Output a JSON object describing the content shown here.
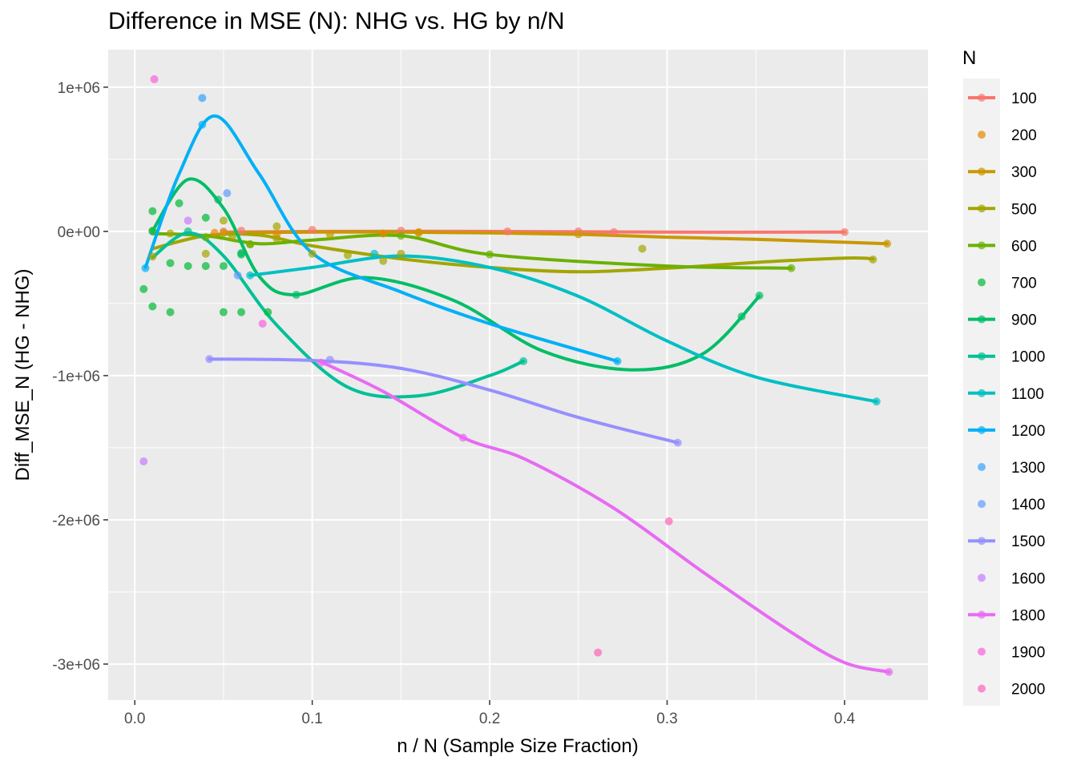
{
  "chart_data": {
    "type": "scatter",
    "title": "Difference in MSE (N): NHG vs. HG by n/N",
    "xlabel": "n / N (Sample Size Fraction)",
    "ylabel": "Diff_MSE_N (HG - NHG)",
    "xlim": [
      -0.015,
      0.447
    ],
    "ylim": [
      -3250000,
      1260000
    ],
    "x_ticks": [
      0.0,
      0.1,
      0.2,
      0.3,
      0.4
    ],
    "x_tick_labels": [
      "0.0",
      "0.1",
      "0.2",
      "0.3",
      "0.4"
    ],
    "y_ticks": [
      -3000000,
      -2000000,
      -1000000,
      0,
      1000000
    ],
    "y_tick_labels": [
      "-3e+06",
      "-2e+06",
      "-1e+06",
      "0e+00",
      "1e+06"
    ],
    "grid": true,
    "legend": {
      "title": "N",
      "placement": "right"
    },
    "series": [
      {
        "name": "100",
        "color": "#F8766D",
        "smooth": true,
        "points": [
          [
            0.05,
            0
          ],
          [
            0.06,
            5000
          ],
          [
            0.1,
            10000
          ],
          [
            0.15,
            5000
          ],
          [
            0.21,
            0
          ],
          [
            0.25,
            0
          ],
          [
            0.27,
            -5000
          ],
          [
            0.4,
            -5000
          ]
        ],
        "curve": [
          [
            0.05,
            -5000
          ],
          [
            0.1,
            0
          ],
          [
            0.2,
            0
          ],
          [
            0.3,
            -5000
          ],
          [
            0.4,
            -5000
          ]
        ]
      },
      {
        "name": "200",
        "color": "#E58700",
        "smooth": false,
        "points": [
          [
            0.045,
            -10000
          ],
          [
            0.08,
            -20000
          ],
          [
            0.14,
            -15000
          ],
          [
            0.16,
            -5000
          ]
        ]
      },
      {
        "name": "300",
        "color": "#C99800",
        "smooth": true,
        "points": [
          [
            0.05,
            -10000
          ],
          [
            0.11,
            -20000
          ],
          [
            0.16,
            -10000
          ],
          [
            0.25,
            -20000
          ],
          [
            0.424,
            -85000
          ]
        ],
        "curve": [
          [
            0.05,
            -10000
          ],
          [
            0.1,
            -5000
          ],
          [
            0.15,
            -5000
          ],
          [
            0.2,
            -10000
          ],
          [
            0.25,
            -20000
          ],
          [
            0.3,
            -40000
          ],
          [
            0.35,
            -55000
          ],
          [
            0.424,
            -85000
          ]
        ]
      },
      {
        "name": "500",
        "color": "#A3A500",
        "smooth": true,
        "points": [
          [
            0.01,
            -175000
          ],
          [
            0.02,
            -15000
          ],
          [
            0.04,
            -155000
          ],
          [
            0.05,
            75000
          ],
          [
            0.055,
            -35000
          ],
          [
            0.065,
            -90000
          ],
          [
            0.08,
            35000
          ],
          [
            0.08,
            -50000
          ],
          [
            0.1,
            -155000
          ],
          [
            0.12,
            -165000
          ],
          [
            0.14,
            -205000
          ],
          [
            0.15,
            -155000
          ],
          [
            0.286,
            -120000
          ],
          [
            0.416,
            -195000
          ]
        ],
        "curve": [
          [
            0.01,
            -120000
          ],
          [
            0.04,
            -30000
          ],
          [
            0.07,
            -25000
          ],
          [
            0.1,
            -100000
          ],
          [
            0.15,
            -190000
          ],
          [
            0.2,
            -250000
          ],
          [
            0.25,
            -280000
          ],
          [
            0.3,
            -255000
          ],
          [
            0.35,
            -215000
          ],
          [
            0.4,
            -185000
          ],
          [
            0.416,
            -190000
          ]
        ]
      },
      {
        "name": "600",
        "color": "#6BB100",
        "smooth": true,
        "points": [
          [
            0.01,
            5000
          ],
          [
            0.04,
            -40000
          ],
          [
            0.065,
            -90000
          ],
          [
            0.15,
            -30000
          ],
          [
            0.2,
            -160000
          ],
          [
            0.37,
            -255000
          ]
        ],
        "curve": [
          [
            0.01,
            -15000
          ],
          [
            0.04,
            -30000
          ],
          [
            0.07,
            -85000
          ],
          [
            0.1,
            -60000
          ],
          [
            0.15,
            -30000
          ],
          [
            0.2,
            -160000
          ],
          [
            0.3,
            -240000
          ],
          [
            0.37,
            -255000
          ]
        ]
      },
      {
        "name": "700",
        "color": "#00BA38",
        "smooth": false,
        "points": [
          [
            0.005,
            -400000
          ],
          [
            0.01,
            140000
          ],
          [
            0.01,
            -520000
          ],
          [
            0.02,
            -560000
          ],
          [
            0.02,
            -220000
          ],
          [
            0.025,
            195000
          ],
          [
            0.03,
            -240000
          ],
          [
            0.04,
            -240000
          ],
          [
            0.04,
            95000
          ],
          [
            0.05,
            -240000
          ],
          [
            0.05,
            -560000
          ],
          [
            0.06,
            -560000
          ],
          [
            0.06,
            -160000
          ],
          [
            0.075,
            -560000
          ]
        ]
      },
      {
        "name": "900",
        "color": "#00BE67",
        "smooth": true,
        "points": [
          [
            0.01,
            0
          ],
          [
            0.047,
            220000
          ],
          [
            0.06,
            -150000
          ],
          [
            0.091,
            -440000
          ],
          [
            0.342,
            -590000
          ],
          [
            0.352,
            -445000
          ]
        ],
        "curve": [
          [
            0.01,
            5000
          ],
          [
            0.03,
            360000
          ],
          [
            0.05,
            160000
          ],
          [
            0.07,
            -310000
          ],
          [
            0.09,
            -440000
          ],
          [
            0.13,
            -320000
          ],
          [
            0.18,
            -480000
          ],
          [
            0.23,
            -830000
          ],
          [
            0.28,
            -960000
          ],
          [
            0.32,
            -850000
          ],
          [
            0.352,
            -450000
          ]
        ]
      },
      {
        "name": "1000",
        "color": "#00C097",
        "smooth": true,
        "points": [
          [
            0.03,
            0
          ],
          [
            0.219,
            -900000
          ]
        ],
        "curve": [
          [
            0.01,
            -180000
          ],
          [
            0.03,
            -10000
          ],
          [
            0.05,
            -170000
          ],
          [
            0.08,
            -650000
          ],
          [
            0.12,
            -1080000
          ],
          [
            0.16,
            -1140000
          ],
          [
            0.2,
            -1000000
          ],
          [
            0.219,
            -900000
          ]
        ]
      },
      {
        "name": "1100",
        "color": "#00BFC4",
        "smooth": true,
        "points": [
          [
            0.065,
            -305000
          ],
          [
            0.135,
            -155000
          ],
          [
            0.418,
            -1180000
          ]
        ],
        "curve": [
          [
            0.065,
            -305000
          ],
          [
            0.1,
            -250000
          ],
          [
            0.15,
            -170000
          ],
          [
            0.2,
            -250000
          ],
          [
            0.25,
            -450000
          ],
          [
            0.3,
            -760000
          ],
          [
            0.35,
            -1010000
          ],
          [
            0.418,
            -1180000
          ]
        ]
      },
      {
        "name": "1200",
        "color": "#00B0F6",
        "smooth": true,
        "points": [
          [
            0.006,
            -255000
          ],
          [
            0.038,
            740000
          ],
          [
            0.272,
            -900000
          ]
        ],
        "curve": [
          [
            0.006,
            -250000
          ],
          [
            0.025,
            400000
          ],
          [
            0.045,
            800000
          ],
          [
            0.07,
            400000
          ],
          [
            0.1,
            -150000
          ],
          [
            0.15,
            -420000
          ],
          [
            0.2,
            -640000
          ],
          [
            0.272,
            -900000
          ]
        ]
      },
      {
        "name": "1300",
        "color": "#35A2FF",
        "smooth": false,
        "points": [
          [
            0.038,
            925000
          ]
        ]
      },
      {
        "name": "1400",
        "color": "#619CFF",
        "smooth": false,
        "points": [
          [
            0.052,
            265000
          ],
          [
            0.058,
            -305000
          ]
        ]
      },
      {
        "name": "1500",
        "color": "#9590FF",
        "smooth": true,
        "points": [
          [
            0.042,
            -885000
          ],
          [
            0.11,
            -890000
          ],
          [
            0.306,
            -1465000
          ]
        ],
        "curve": [
          [
            0.042,
            -885000
          ],
          [
            0.1,
            -895000
          ],
          [
            0.15,
            -950000
          ],
          [
            0.2,
            -1100000
          ],
          [
            0.25,
            -1290000
          ],
          [
            0.306,
            -1465000
          ]
        ]
      },
      {
        "name": "1600",
        "color": "#C77CFF",
        "smooth": false,
        "points": [
          [
            0.005,
            -1595000
          ],
          [
            0.03,
            75000
          ]
        ]
      },
      {
        "name": "1800",
        "color": "#E76BF3",
        "smooth": true,
        "points": [
          [
            0.105,
            -910000
          ],
          [
            0.185,
            -1430000
          ],
          [
            0.425,
            -3055000
          ]
        ],
        "curve": [
          [
            0.105,
            -905000
          ],
          [
            0.14,
            -1110000
          ],
          [
            0.185,
            -1430000
          ],
          [
            0.22,
            -1580000
          ],
          [
            0.27,
            -1920000
          ],
          [
            0.32,
            -2360000
          ],
          [
            0.37,
            -2780000
          ],
          [
            0.4,
            -2990000
          ],
          [
            0.425,
            -3055000
          ]
        ]
      },
      {
        "name": "1900",
        "color": "#FA62DB",
        "smooth": false,
        "points": [
          [
            0.011,
            1055000
          ],
          [
            0.072,
            -640000
          ]
        ]
      },
      {
        "name": "2000",
        "color": "#FF62BC",
        "smooth": false,
        "points": [
          [
            0.261,
            -2920000
          ],
          [
            0.301,
            -2010000
          ]
        ]
      }
    ]
  }
}
